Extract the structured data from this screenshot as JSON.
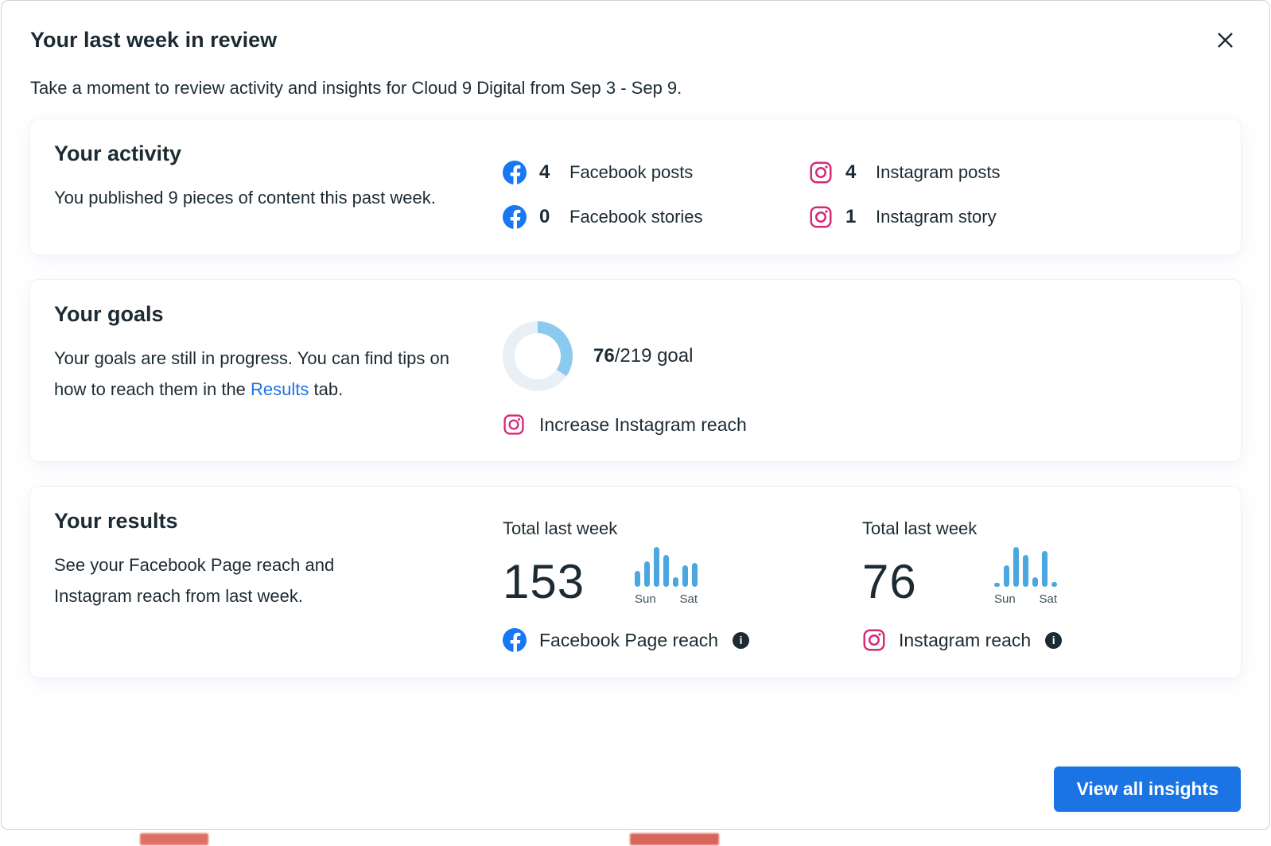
{
  "modal": {
    "title": "Your last week in review",
    "subtitle": "Take a moment to review activity and insights for Cloud 9 Digital from Sep 3 - Sep 9."
  },
  "activity": {
    "heading": "Your activity",
    "description": "You published 9 pieces of content this past week.",
    "stats": [
      {
        "network": "facebook",
        "count": "4",
        "label": "Facebook posts"
      },
      {
        "network": "instagram",
        "count": "4",
        "label": "Instagram posts"
      },
      {
        "network": "facebook",
        "count": "0",
        "label": "Facebook stories"
      },
      {
        "network": "instagram",
        "count": "1",
        "label": "Instagram story"
      }
    ]
  },
  "goals": {
    "heading": "Your goals",
    "text_before_link": "Your goals are still in progress. You can find tips on how to reach them in the ",
    "link_label": "Results",
    "text_after_link": " tab.",
    "progress": {
      "value": "76",
      "total_suffix": "/219 goal",
      "percent": 34.7
    },
    "goal_label": "Increase Instagram reach"
  },
  "results": {
    "heading": "Your results",
    "description": "See your Facebook Page reach and Instagram reach from last week.",
    "columns": [
      {
        "total_label": "Total last week",
        "value": "153",
        "bars": [
          40,
          65,
          100,
          80,
          25,
          55,
          60
        ],
        "first_day": "Sun",
        "last_day": "Sat",
        "network": "facebook",
        "source_label": "Facebook Page reach"
      },
      {
        "total_label": "Total last week",
        "value": "76",
        "bars": [
          10,
          55,
          100,
          80,
          25,
          90,
          12
        ],
        "first_day": "Sun",
        "last_day": "Sat",
        "network": "instagram",
        "source_label": "Instagram reach"
      }
    ]
  },
  "footer": {
    "button_label": "View all insights"
  },
  "theme": {
    "facebook_blue": "#1877F2",
    "instagram_pink": "#D62976",
    "accent_blue": "#1B74E4",
    "bar_blue": "#4BA7E0",
    "donut_fill": "#8CC9EE",
    "donut_track": "#E8F0F6"
  }
}
